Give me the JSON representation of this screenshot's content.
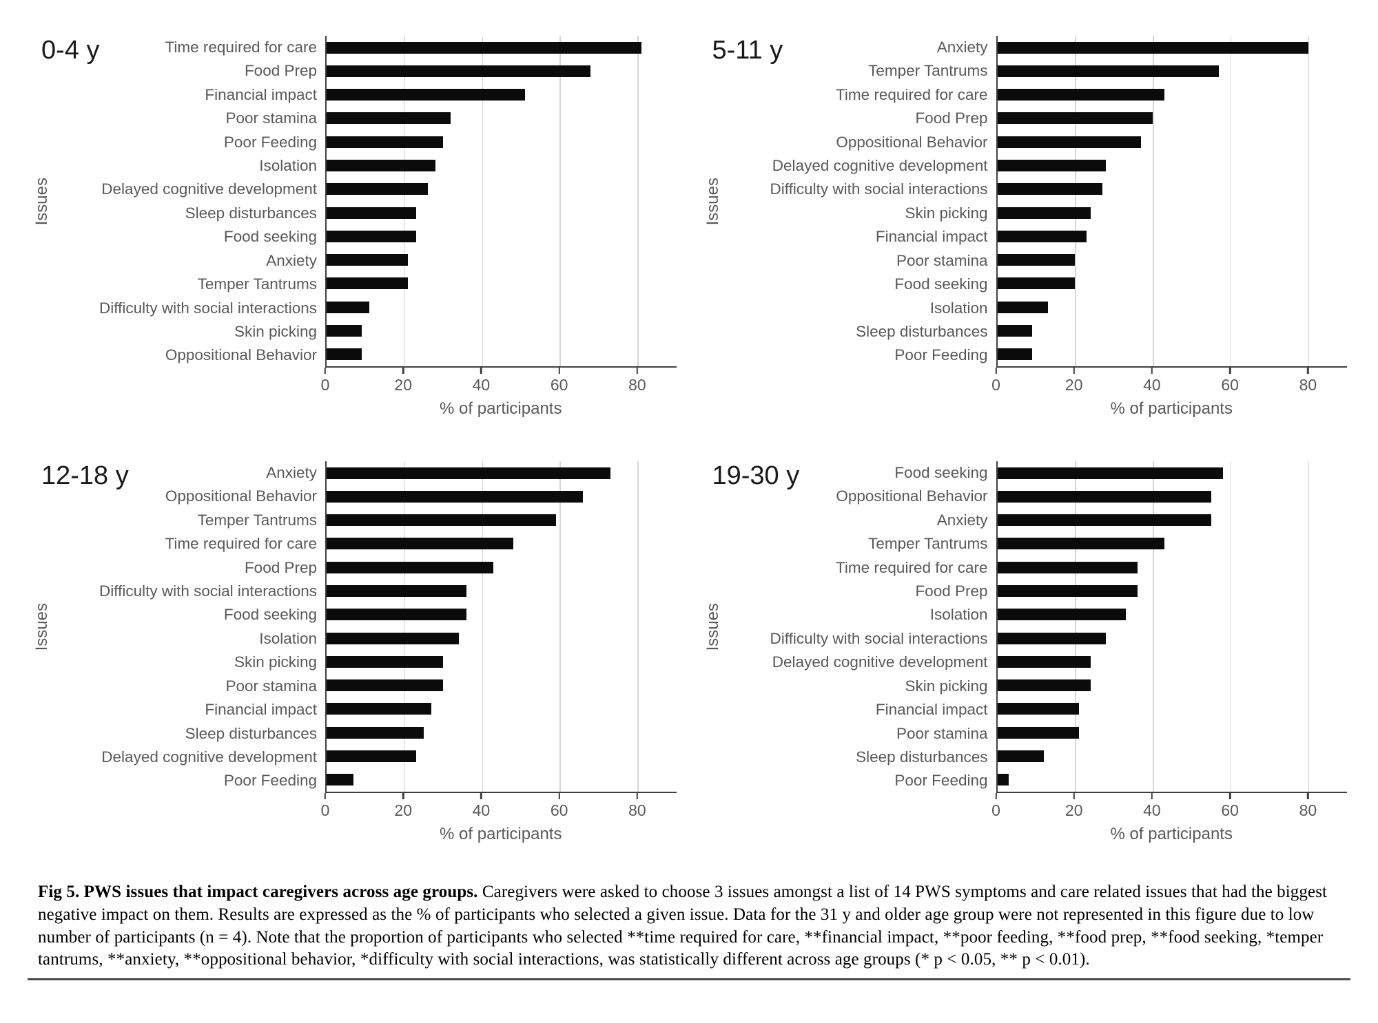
{
  "figure": {
    "caption_bold": "Fig 5. PWS issues that impact caregivers across age groups.",
    "caption_text": " Caregivers were asked to choose 3 issues amongst a list of 14 PWS symptoms and care related issues that had the biggest negative impact on them. Results are expressed as the % of participants who selected a given issue. Data for the 31 y and older age group were not represented in this figure due to low number of participants (n = 4). Note that the proportion of participants who selected **time required for care, **financial impact, **poor feeding, **food prep, **food seeking, *temper tantrums, **anxiety, **oppositional behavior, *difficulty with social interactions, was statistically different across age groups (* p < 0.05, ** p < 0.01)."
  },
  "colors": {
    "bar": "#0b0b0b",
    "axis": "#3f3f3f",
    "gridline": "#d6d6d6",
    "label_gray": "#595959",
    "title_black": "#1a1a1a"
  },
  "chart_data": [
    {
      "type": "bar",
      "title": "0-4 y",
      "xlabel": "% of participants",
      "ylabel": "Issues",
      "xlim": [
        0,
        90
      ],
      "xticks": [
        0,
        20,
        40,
        60,
        80
      ],
      "grid": true,
      "orientation": "horizontal",
      "categories": [
        "Time required for care",
        "Food Prep",
        "Financial impact",
        "Poor stamina",
        "Poor Feeding",
        "Isolation",
        "Delayed cognitive development",
        "Sleep disturbances",
        "Food seeking",
        "Anxiety",
        "Temper Tantrums",
        "Difficulty with social interactions",
        "Skin picking",
        "Oppositional Behavior"
      ],
      "values": [
        81,
        68,
        51,
        32,
        30,
        28,
        26,
        23,
        23,
        21,
        21,
        11,
        9,
        9
      ]
    },
    {
      "type": "bar",
      "title": "5-11 y",
      "xlabel": "% of participants",
      "ylabel": "Issues",
      "xlim": [
        0,
        90
      ],
      "xticks": [
        0,
        20,
        40,
        60,
        80
      ],
      "grid": true,
      "orientation": "horizontal",
      "categories": [
        "Anxiety",
        "Temper Tantrums",
        "Time required for care",
        "Food Prep",
        "Oppositional Behavior",
        "Delayed cognitive development",
        "Difficulty with social interactions",
        "Skin picking",
        "Financial impact",
        "Poor stamina",
        "Food seeking",
        "Isolation",
        "Sleep disturbances",
        "Poor Feeding"
      ],
      "values": [
        80,
        57,
        43,
        40,
        37,
        28,
        27,
        24,
        23,
        20,
        20,
        13,
        9,
        9
      ]
    },
    {
      "type": "bar",
      "title": "12-18 y",
      "xlabel": "% of participants",
      "ylabel": "Issues",
      "xlim": [
        0,
        90
      ],
      "xticks": [
        0,
        20,
        40,
        60,
        80
      ],
      "grid": true,
      "orientation": "horizontal",
      "categories": [
        "Anxiety",
        "Oppositional Behavior",
        "Temper Tantrums",
        "Time required for care",
        "Food Prep",
        "Difficulty with social interactions",
        "Food seeking",
        "Isolation",
        "Skin picking",
        "Poor stamina",
        "Financial impact",
        "Sleep disturbances",
        "Delayed cognitive development",
        "Poor Feeding"
      ],
      "values": [
        73,
        66,
        59,
        48,
        43,
        36,
        36,
        34,
        30,
        30,
        27,
        25,
        23,
        7
      ]
    },
    {
      "type": "bar",
      "title": "19-30 y",
      "xlabel": "% of participants",
      "ylabel": "Issues",
      "xlim": [
        0,
        90
      ],
      "xticks": [
        0,
        20,
        40,
        60,
        80
      ],
      "grid": true,
      "orientation": "horizontal",
      "categories": [
        "Food seeking",
        "Oppositional Behavior",
        "Anxiety",
        "Temper Tantrums",
        "Time required for care",
        "Food Prep",
        "Isolation",
        "Difficulty with social interactions",
        "Delayed cognitive development",
        "Skin picking",
        "Financial impact",
        "Poor stamina",
        "Sleep disturbances",
        "Poor Feeding"
      ],
      "values": [
        58,
        55,
        55,
        43,
        36,
        36,
        33,
        28,
        24,
        24,
        21,
        21,
        12,
        3
      ]
    }
  ]
}
